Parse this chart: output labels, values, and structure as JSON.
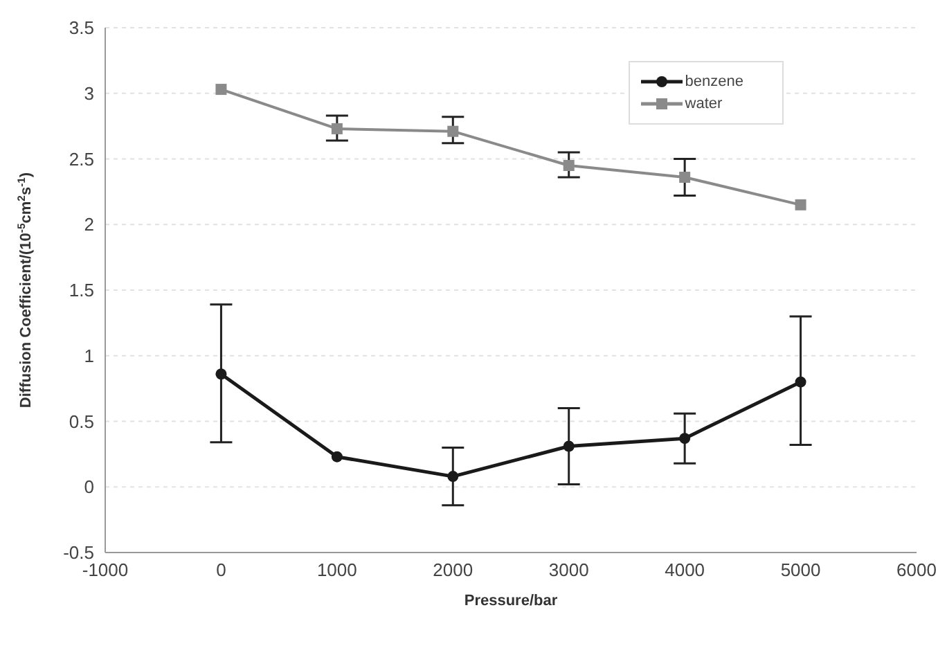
{
  "chart_data": {
    "type": "line",
    "xlabel": "Pressure/bar",
    "ylabel": "Diffusion Coefficient/(10$^{-5}$cm$^{2}$s$^{-1}$)",
    "x": [
      0,
      1000,
      2000,
      3000,
      4000,
      5000
    ],
    "series": [
      {
        "name": "benzene",
        "color": "#1a1a1a",
        "marker": "circle",
        "values": [
          0.86,
          0.23,
          0.08,
          0.31,
          0.37,
          0.8
        ],
        "errors": [
          [
            0.34,
            1.39
          ],
          null,
          [
            -0.14,
            0.3
          ],
          [
            0.02,
            0.6
          ],
          [
            0.18,
            0.56
          ],
          [
            0.32,
            1.3
          ]
        ]
      },
      {
        "name": "water",
        "color": "#8a8a8a",
        "marker": "square",
        "values": [
          3.03,
          2.73,
          2.71,
          2.45,
          2.36,
          2.15
        ],
        "errors": [
          null,
          [
            2.64,
            2.83
          ],
          [
            2.62,
            2.82
          ],
          [
            2.36,
            2.55
          ],
          [
            2.22,
            2.5
          ],
          null
        ]
      }
    ],
    "xlim": [
      -1000,
      6000
    ],
    "xticks": [
      -1000,
      0,
      1000,
      2000,
      3000,
      4000,
      5000,
      6000
    ],
    "ylim": [
      -0.5,
      3.5
    ],
    "yticks": [
      -0.5,
      0,
      0.5,
      1,
      1.5,
      2,
      2.5,
      3,
      3.5
    ],
    "grid": "y",
    "legend": "top right"
  }
}
